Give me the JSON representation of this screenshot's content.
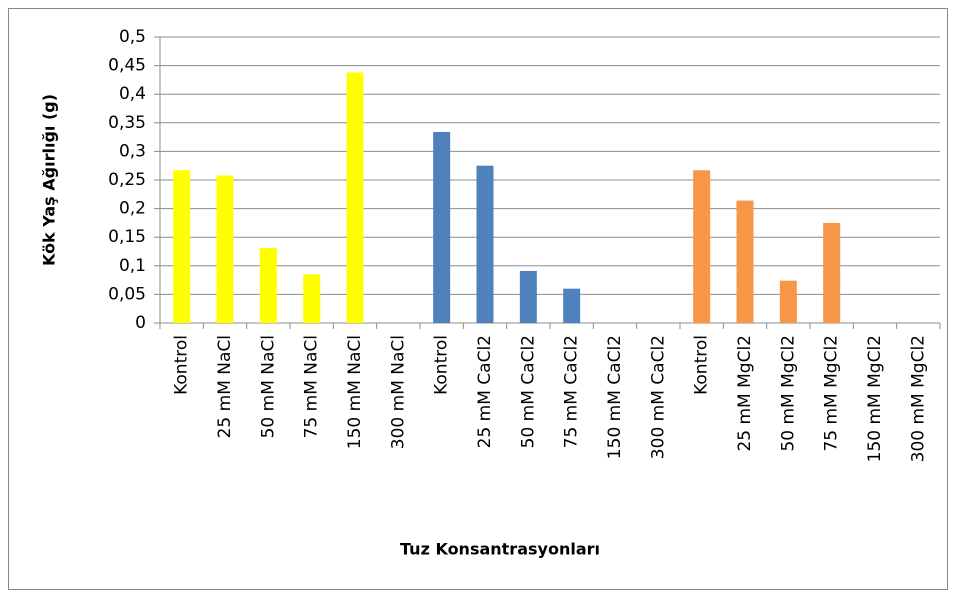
{
  "chart_data": {
    "type": "bar",
    "ylabel": "Kök Yaş Ağırlığı (g)",
    "xlabel": "Tuz Konsantrasyonları",
    "categories": [
      "Kontrol",
      "25 mM NaCl",
      "50 mM NaCl",
      "75 mM NaCl",
      "150 mM NaCl",
      "300 mM NaCl",
      "Kontrol",
      "25 mM CaCl2",
      "50 mM CaCl2",
      "75 mM CaCl2",
      "150 mM CaCl2",
      "300 mM CaCl2",
      "Kontrol",
      "25 mM MgCl2",
      "50 mM MgCl2",
      "75 mM MgCl2",
      "150 mM MgCl2",
      "300 mM MgCl2"
    ],
    "values": [
      0.267,
      0.258,
      0.131,
      0.085,
      0.438,
      0,
      0.334,
      0.275,
      0.091,
      0.06,
      0,
      0,
      0.267,
      0.214,
      0.074,
      0.175,
      0,
      0
    ],
    "colors": [
      "#ffff00",
      "#ffff00",
      "#ffff00",
      "#ffff00",
      "#ffff00",
      "#ffff00",
      "#4f81bd",
      "#4f81bd",
      "#4f81bd",
      "#4f81bd",
      "#4f81bd",
      "#4f81bd",
      "#f79646",
      "#f79646",
      "#f79646",
      "#f79646",
      "#f79646",
      "#f79646"
    ],
    "ylim": [
      0,
      0.5
    ],
    "yticks": [
      0,
      {
        "value": 0.05,
        "label": "0,05"
      },
      {
        "value": 0.1,
        "label": "0,1"
      },
      {
        "value": 0.15,
        "label": "0,15"
      },
      {
        "value": 0.2,
        "label": "0,2"
      },
      {
        "value": 0.25,
        "label": "0,25"
      },
      {
        "value": 0.3,
        "label": "0,3"
      },
      {
        "value": 0.35,
        "label": "0,35"
      },
      {
        "value": 0.4,
        "label": "0,4"
      },
      {
        "value": 0.45,
        "label": "0,45"
      },
      {
        "value": 0.5,
        "label": "0,5"
      }
    ],
    "grid": true
  }
}
